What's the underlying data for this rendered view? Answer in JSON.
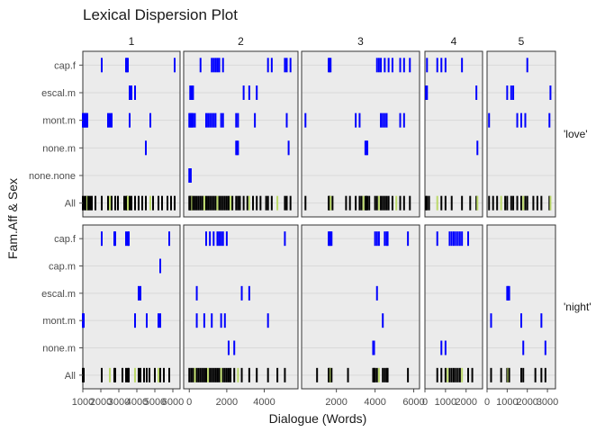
{
  "chart_data": {
    "type": "dispersion",
    "title": "Lexical Dispersion Plot",
    "xlabel": "Dialogue (Words)",
    "ylabel": "Fam.Aff & Sex",
    "acts": [
      {
        "label": "1",
        "xlim": [
          1000,
          6400
        ],
        "ticks": [
          1000,
          2000,
          3000,
          4000,
          5000,
          6000
        ],
        "tick_labels": [
          "1000",
          "2000",
          "3000",
          "4000",
          "5000",
          "6000"
        ]
      },
      {
        "label": "2",
        "xlim": [
          -300,
          5800
        ],
        "ticks": [
          0,
          2000,
          4000
        ],
        "tick_labels": [
          "0",
          "2000",
          "4000"
        ]
      },
      {
        "label": "3",
        "xlim": [
          200,
          6300
        ],
        "ticks": [
          2000,
          4000,
          6000
        ],
        "tick_labels": [
          "2000",
          "4000",
          "6000"
        ]
      },
      {
        "label": "4",
        "xlim": [
          0,
          2800
        ],
        "ticks": [
          0,
          1000,
          2000
        ],
        "tick_labels": [
          "0",
          "1000",
          "2000"
        ]
      },
      {
        "label": "5",
        "xlim": [
          0,
          3400
        ],
        "ticks": [
          0,
          1000,
          2000,
          3000
        ],
        "tick_labels": [
          "0",
          "1000",
          "2000",
          "3000"
        ]
      }
    ],
    "rows": [
      {
        "label": "'love'",
        "categories": [
          "cap.f",
          "escal.m",
          "mont.m",
          "none.m",
          "none.none",
          "All"
        ],
        "cells": [
          {
            "cap.f": [
              2050,
              3400,
              3450,
              3500,
              6100
            ],
            "escal.m": [
              3600,
              3700,
              3900
            ],
            "mont.m": [
              1000,
              1050,
              1100,
              1150,
              1200,
              1250,
              2400,
              2500,
              2600,
              3600,
              4750
            ],
            "none.m": [
              4500
            ],
            "none.none": [],
            "All": [
              1000,
              1100,
              1200,
              1250,
              1300,
              1400,
              1500,
              1700,
              2050,
              2400,
              2500,
              2600,
              2800,
              2950,
              3300,
              3400,
              3450,
              3500,
              3600,
              3700,
              3900,
              4100,
              4300,
              4500,
              4750,
              4900,
              5200,
              5400,
              5700,
              5900,
              6100
            ]
          },
          {
            "cap.f": [
              600,
              1200,
              1300,
              1400,
              1500,
              1600,
              1800,
              4200,
              4400,
              5100,
              5200,
              5400
            ],
            "escal.m": [
              50,
              100,
              150,
              200,
              2900,
              3200,
              3600
            ],
            "mont.m": [
              0,
              50,
              100,
              150,
              200,
              300,
              900,
              1000,
              1100,
              1200,
              1300,
              1400,
              1700,
              1800,
              2500,
              2600,
              3500,
              5200
            ],
            "none.m": [
              2500,
              2550,
              2600,
              5300
            ],
            "none.none": [
              0,
              50,
              80
            ],
            "All": [
              0,
              50,
              100,
              150,
              200,
              300,
              400,
              500,
              600,
              700,
              800,
              900,
              1000,
              1100,
              1200,
              1300,
              1400,
              1500,
              1600,
              1700,
              1800,
              1900,
              2000,
              2100,
              2200,
              2300,
              2500,
              2600,
              2700,
              2900,
              3100,
              3200,
              3400,
              3600,
              3800,
              4100,
              4200,
              4400,
              4700,
              5100,
              5200,
              5400
            ]
          },
          {
            "cap.f": [
              1600,
              1650,
              1700,
              4100,
              4200,
              4300,
              4500,
              4700,
              4900,
              5300,
              5500,
              5800
            ],
            "escal.m": [],
            "mont.m": [
              400,
              3000,
              3200,
              4300,
              4400,
              4500,
              4600,
              5300,
              5500
            ],
            "none.m": [
              3500,
              3550,
              3600
            ],
            "none.none": [],
            "All": [
              400,
              1600,
              1650,
              1700,
              1800,
              2500,
              2700,
              3000,
              3200,
              3300,
              3400,
              3500,
              3550,
              3600,
              3700,
              4000,
              4100,
              4200,
              4300,
              4400,
              4500,
              4600,
              4700,
              4900,
              5100,
              5300,
              5500,
              5800
            ]
          },
          {
            "cap.f": [
              100,
              600,
              800,
              1000,
              1800
            ],
            "escal.m": [
              50,
              100,
              2500
            ],
            "mont.m": [],
            "none.m": [
              2550
            ],
            "none.none": [],
            "All": [
              50,
              100,
              200,
              600,
              800,
              1000,
              1300,
              1800,
              2200,
              2500,
              2550
            ]
          },
          {
            "cap.f": [
              2000
            ],
            "escal.m": [
              1000,
              1200,
              1300,
              3150
            ],
            "mont.m": [
              100,
              1500,
              1700,
              1900,
              3100
            ],
            "none.m": [],
            "none.none": [],
            "All": [
              100,
              300,
              500,
              700,
              900,
              1000,
              1200,
              1300,
              1500,
              1700,
              1800,
              1900,
              2000,
              2300,
              2500,
              2700,
              3100,
              3150
            ]
          }
        ]
      },
      {
        "label": "'night'",
        "categories": [
          "cap.f",
          "cap.m",
          "escal.m",
          "mont.m",
          "none.m",
          "All"
        ],
        "cells": [
          {
            "cap.f": [
              2050,
              2750,
              2800,
              3400,
              3500,
              3550,
              5800
            ],
            "cap.m": [
              5300
            ],
            "escal.m": [
              4100,
              4200
            ],
            "mont.m": [
              1000,
              1050,
              3900,
              4550,
              5200,
              5300
            ],
            "none.m": [],
            "All": [
              1000,
              1050,
              2050,
              2500,
              2750,
              2800,
              3200,
              3400,
              3500,
              3550,
              3900,
              4100,
              4200,
              4400,
              4550,
              4700,
              5000,
              5200,
              5300,
              5500,
              5800
            ]
          },
          {
            "cap.f": [
              900,
              1100,
              1300,
              1500,
              1600,
              1700,
              1800,
              2000,
              5100
            ],
            "cap.m": [],
            "escal.m": [
              400,
              2800,
              3200
            ],
            "mont.m": [
              400,
              800,
              1200,
              1700,
              1900,
              4200
            ],
            "none.m": [
              2100,
              2400
            ],
            "All": [
              0,
              100,
              200,
              300,
              400,
              500,
              600,
              700,
              800,
              900,
              1000,
              1100,
              1200,
              1300,
              1400,
              1500,
              1600,
              1700,
              1800,
              1900,
              2000,
              2100,
              2200,
              2400,
              2600,
              2800,
              3200,
              3600,
              4200,
              4700,
              5100
            ]
          },
          {
            "cap.f": [
              1600,
              1650,
              1700,
              1750,
              4000,
              4100,
              4200,
              4500,
              4600,
              4650,
              5700
            ],
            "cap.m": [],
            "escal.m": [
              4100
            ],
            "mont.m": [
              4400
            ],
            "none.m": [
              3900,
              3950
            ],
            "All": [
              1000,
              1600,
              1650,
              1700,
              1750,
              2600,
              3900,
              3950,
              4000,
              4100,
              4200,
              4400,
              4500,
              4600,
              4650,
              5700
            ]
          },
          {
            "cap.f": [
              600,
              1200,
              1300,
              1400,
              1500,
              1600,
              1700,
              1800,
              2100
            ],
            "cap.m": [],
            "escal.m": [],
            "mont.m": [],
            "none.m": [
              800,
              1000
            ],
            "All": [
              600,
              800,
              1000,
              1100,
              1200,
              1300,
              1400,
              1500,
              1600,
              1700,
              1800,
              2100,
              2300
            ]
          },
          {
            "cap.f": [],
            "cap.m": [],
            "escal.m": [
              1000,
              1050,
              1100
            ],
            "mont.m": [
              200,
              1700,
              2700
            ],
            "none.m": [
              1800,
              2900
            ],
            "All": [
              200,
              700,
              1000,
              1050,
              1100,
              1700,
              1800,
              2400,
              2700,
              2900
            ]
          }
        ]
      }
    ],
    "colors": {
      "cap.f": "#0000ff",
      "cap.m": "#0000ff",
      "escal.m": "#0000ff",
      "mont.m": "#0000ff",
      "none.m": "#0000ff",
      "none.none": "#0000ff",
      "All": "#000000"
    },
    "accent_hex": "#bcd96a",
    "grid": true
  }
}
